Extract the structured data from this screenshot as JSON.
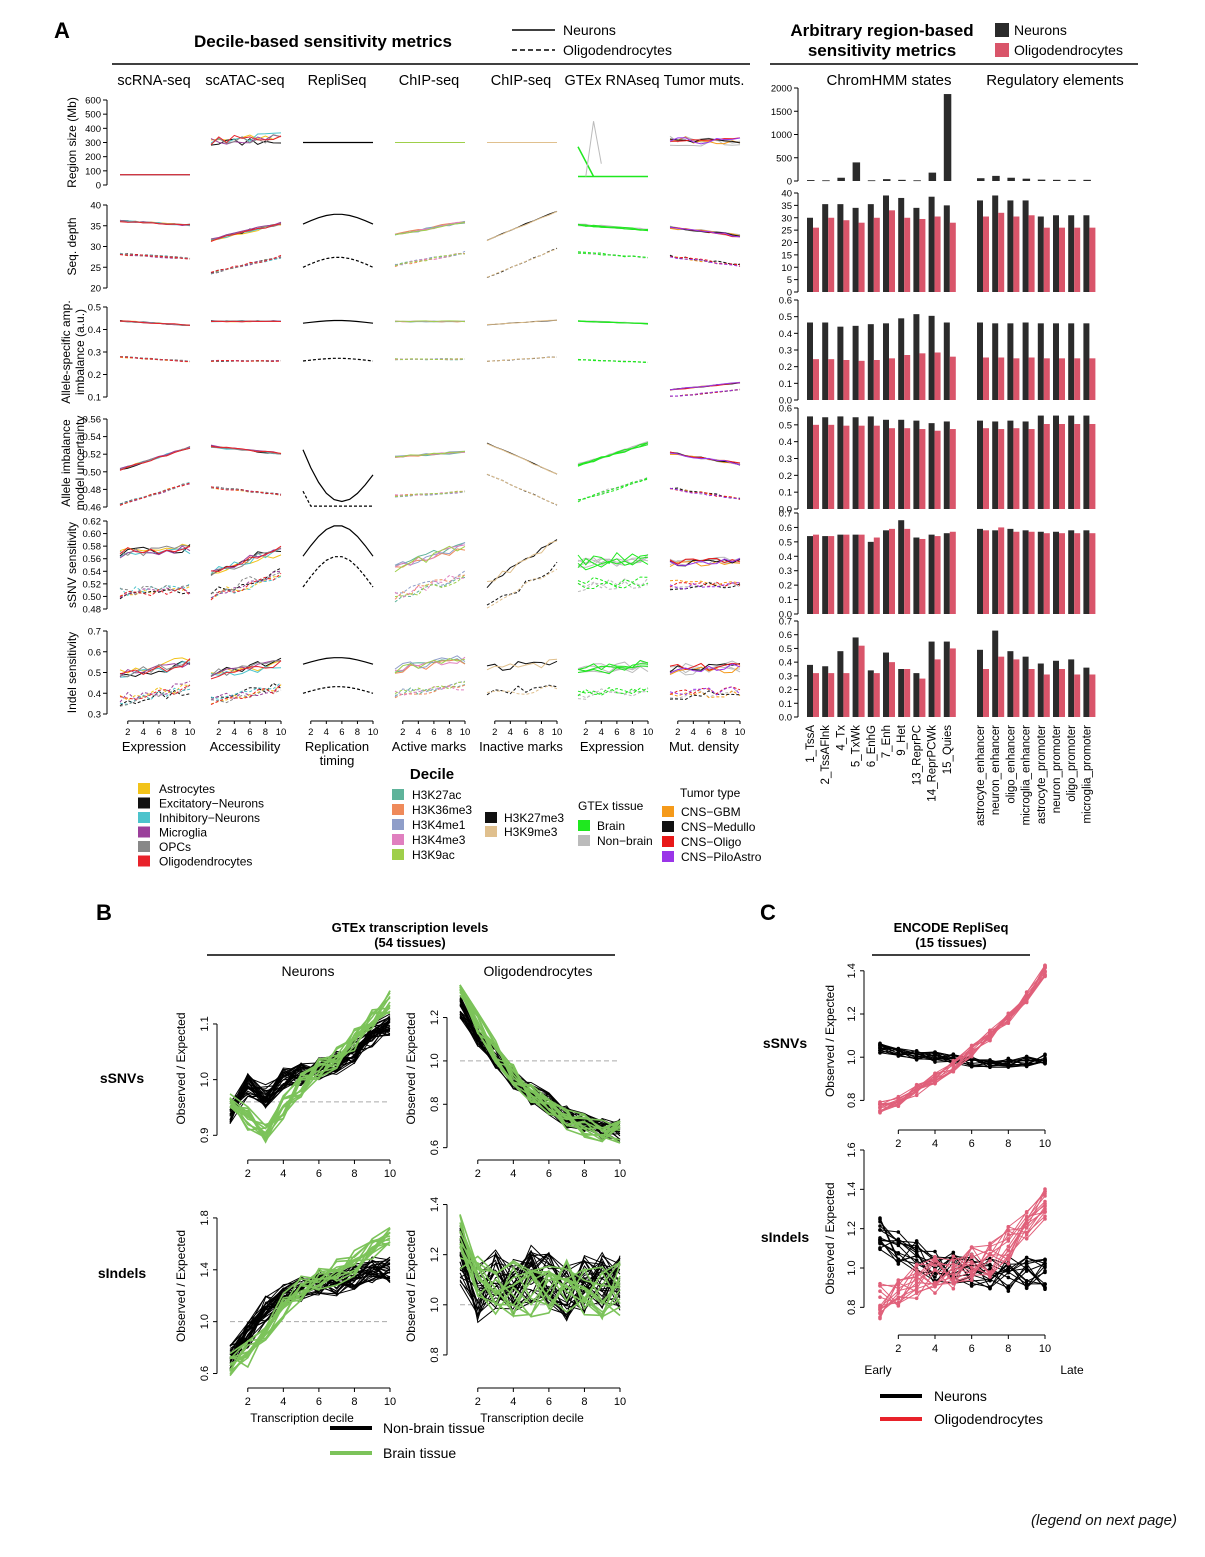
{
  "panel_labels": {
    "a": "A",
    "b": "B",
    "c": "C"
  },
  "footer_note": "(legend on next page)",
  "panel_a": {
    "decile_title": "Decile-based sensitivity metrics",
    "arbitrary_title_1": "Arbitrary region-based",
    "arbitrary_title_2": "sensitivity metrics",
    "line_legend": {
      "solid": "Neurons",
      "dashed": "Oligodendrocytes"
    },
    "bar_legend": {
      "neurons": "Neurons",
      "oligo": "Oligodendrocytes"
    },
    "column_titles": [
      "scRNA-seq",
      "scATAC-seq",
      "RepliSeq",
      "ChIP-seq",
      "ChIP-seq",
      "GTEx RNAseq",
      "Tumor muts."
    ],
    "column_xlabels": [
      [
        "Expression"
      ],
      [
        "Accessibility"
      ],
      [
        "Replication",
        "timing"
      ],
      [
        "Active marks"
      ],
      [
        "Inactive marks"
      ],
      [
        "Expression"
      ],
      [
        "Mut. density"
      ]
    ],
    "bar_group_titles": [
      "ChromHMM states",
      "Regulatory elements"
    ],
    "decile_ticks": [
      "2",
      "4",
      "6",
      "8",
      "10"
    ],
    "row_labels": [
      [
        "Region size (Mb)"
      ],
      [
        "Seq. depth"
      ],
      [
        "Allele-specific amp.",
        "imbalance (a.u.)"
      ],
      [
        "Allele imbalance",
        "model uncertainty"
      ],
      [
        "sSNV sensitivity"
      ],
      [
        "Indel sensitivity"
      ]
    ],
    "row_ticks": [
      [
        "0",
        "100",
        "200",
        "300",
        "400",
        "500",
        "600"
      ],
      [
        "20",
        "25",
        "30",
        "35",
        "40"
      ],
      [
        "0.1",
        "0.2",
        "0.3",
        "0.4",
        "0.5"
      ],
      [
        "0.46",
        "0.48",
        "0.50",
        "0.52",
        "0.54",
        "0.56"
      ],
      [
        "0.48",
        "0.50",
        "0.52",
        "0.54",
        "0.56",
        "0.58",
        "0.60",
        "0.62"
      ],
      [
        "0.3",
        "0.4",
        "0.5",
        "0.6",
        "0.7"
      ]
    ],
    "bar_categories": [
      "1_TssA",
      "2_TssAFlnk",
      "4_Tx",
      "5_TxWk",
      "6_EnhG",
      "7_Enh",
      "9_Het",
      "13_ReprPC",
      "14_ReprPCWk",
      "15_Quies",
      "astrocyte_enhancer",
      "neuron_enhancer",
      "oligo_enhancer",
      "microglia_enhancer",
      "astrocyte_promoter",
      "neuron_promoter",
      "oligo_promoter",
      "microglia_promoter"
    ],
    "bar_row_ticks": [
      [
        "0",
        "500",
        "1000",
        "1500",
        "2000"
      ],
      [
        "0",
        "5",
        "10",
        "15",
        "20",
        "25",
        "30",
        "35",
        "40"
      ],
      [
        "0.0",
        "0.1",
        "0.2",
        "0.3",
        "0.4",
        "0.5",
        "0.6"
      ],
      [
        "0.0",
        "0.1",
        "0.2",
        "0.3",
        "0.4",
        "0.5",
        "0.6"
      ],
      [
        "0.0",
        "0.1",
        "0.2",
        "0.3",
        "0.4",
        "0.5",
        "0.6",
        "0.7"
      ],
      [
        "0.0",
        "0.1",
        "0.2",
        "0.3",
        "0.4",
        "0.5",
        "0.6",
        "0.7"
      ]
    ],
    "legends": {
      "decile_title": "Decile",
      "cell_types": [
        {
          "label": "Astrocytes",
          "color": "#f2c31a"
        },
        {
          "label": "Excitatory−Neurons",
          "color": "#111111"
        },
        {
          "label": "Inhibitory−Neurons",
          "color": "#4cc3cc"
        },
        {
          "label": "Microglia",
          "color": "#9b3f9b"
        },
        {
          "label": "OPCs",
          "color": "#888888"
        },
        {
          "label": "Oligodendrocytes",
          "color": "#e8222a"
        }
      ],
      "marks_active": [
        {
          "label": "H3K27ac",
          "color": "#5fb39a"
        },
        {
          "label": "H3K36me3",
          "color": "#ef8a5a"
        },
        {
          "label": "H3K4me1",
          "color": "#8f9ec9"
        },
        {
          "label": "H3K4me3",
          "color": "#e07fbf"
        },
        {
          "label": "H3K9ac",
          "color": "#9fcf4a"
        }
      ],
      "marks_inactive": [
        {
          "label": "H3K27me3",
          "color": "#111111"
        },
        {
          "label": "H3K9me3",
          "color": "#e0c08e"
        }
      ],
      "gtex_title": "GTEx tissue",
      "gtex": [
        {
          "label": "Brain",
          "color": "#1fe81f"
        },
        {
          "label": "Non−brain",
          "color": "#bbbbbb"
        }
      ],
      "tumor_title": "Tumor type",
      "tumor": [
        {
          "label": "CNS−GBM",
          "color": "#f59a1a"
        },
        {
          "label": "CNS−Medullo",
          "color": "#111111"
        },
        {
          "label": "CNS−Oligo",
          "color": "#e81818"
        },
        {
          "label": "CNS−PiloAstro",
          "color": "#9a35e8"
        }
      ]
    }
  },
  "panel_b": {
    "title": "GTEx transcription levels",
    "subtitle": "(54 tissues)",
    "col_titles": [
      "Neurons",
      "Oligodendrocytes"
    ],
    "row_labels": [
      "sSNVs",
      "sIndels"
    ],
    "ylabel": "Observed / Expected",
    "xlabel": "Transcription decile",
    "x_ticks": [
      "2",
      "4",
      "6",
      "8",
      "10"
    ],
    "y_ticks": {
      "snv_neurons": [
        "0.9",
        "1.0",
        "1.1"
      ],
      "snv_oligo": [
        "0.6",
        "0.8",
        "1.0",
        "1.2"
      ],
      "indel_neurons": [
        "0.6",
        "1.0",
        "1.4",
        "1.8"
      ],
      "indel_oligo": [
        "0.8",
        "1.0",
        "1.2",
        "1.4"
      ]
    },
    "legend": [
      {
        "label": "Non-brain tissue",
        "color": "#000000"
      },
      {
        "label": "Brain tissue",
        "color": "#7cc35a"
      }
    ]
  },
  "panel_c": {
    "title": "ENCODE RepliSeq",
    "subtitle": "(15 tissues)",
    "row_labels": [
      "sSNVs",
      "sIndels"
    ],
    "ylabel": "Observed / Expected",
    "x_ticks": [
      "2",
      "4",
      "6",
      "8",
      "10"
    ],
    "x_end_labels": [
      "Early",
      "Late"
    ],
    "y_ticks": {
      "snv": [
        "0.8",
        "1.0",
        "1.2",
        "1.4"
      ],
      "indel": [
        "0.8",
        "1.0",
        "1.2",
        "1.4",
        "1.6"
      ]
    },
    "legend": [
      {
        "label": "Neurons",
        "color": "#000000"
      },
      {
        "label": "Oligodendrocytes",
        "color": "#e8222a"
      }
    ]
  },
  "chart_data": [
    {
      "type": "bar",
      "title": "Arbitrary region-based sensitivity metrics",
      "categories": [
        "1_TssA",
        "2_TssAFlnk",
        "4_Tx",
        "5_TxWk",
        "6_EnhG",
        "7_Enh",
        "9_Het",
        "13_ReprPC",
        "14_ReprPCWk",
        "15_Quies",
        "astrocyte_enhancer",
        "neuron_enhancer",
        "oligo_enhancer",
        "microglia_enhancer",
        "astrocyte_promoter",
        "neuron_promoter",
        "oligo_promoter",
        "microglia_promoter"
      ],
      "panels": [
        {
          "ylabel": "Region size (Mb)",
          "ylim": [
            0,
            2000
          ],
          "series": [
            {
              "name": "Neurons",
              "values": [
                20,
                15,
                70,
                400,
                15,
                40,
                25,
                15,
                180,
                1870,
                60,
                110,
                70,
                50,
                30,
                25,
                25,
                25
              ]
            },
            {
              "name": "Oligodendrocytes",
              "values": []
            }
          ]
        },
        {
          "ylabel": "Seq. depth",
          "ylim": [
            0,
            40
          ],
          "series": [
            {
              "name": "Neurons",
              "values": [
                30,
                35.5,
                35.5,
                34,
                35.5,
                39,
                38,
                34,
                38.5,
                35,
                37,
                39,
                37,
                37,
                30.5,
                31,
                31,
                31
              ]
            },
            {
              "name": "Oligodendrocytes",
              "values": [
                26,
                30,
                29,
                28,
                30,
                33,
                30,
                29.5,
                30.5,
                28,
                30.5,
                32,
                30.5,
                31,
                26,
                26,
                26,
                26
              ]
            }
          ]
        },
        {
          "ylabel": "Allele-specific amp. imbalance (a.u.)",
          "ylim": [
            0,
            0.6
          ],
          "series": [
            {
              "name": "Neurons",
              "values": [
                0.465,
                0.465,
                0.44,
                0.445,
                0.455,
                0.46,
                0.49,
                0.515,
                0.505,
                0.465,
                0.465,
                0.46,
                0.46,
                0.465,
                0.46,
                0.46,
                0.46,
                0.46
              ]
            },
            {
              "name": "Oligodendrocytes",
              "values": [
                0.245,
                0.245,
                0.24,
                0.235,
                0.24,
                0.25,
                0.27,
                0.28,
                0.285,
                0.26,
                0.255,
                0.255,
                0.25,
                0.255,
                0.25,
                0.25,
                0.25,
                0.25
              ]
            }
          ]
        },
        {
          "ylabel": "Allele imbalance model uncertainty",
          "ylim": [
            0,
            0.6
          ],
          "series": [
            {
              "name": "Neurons",
              "values": [
                0.55,
                0.545,
                0.55,
                0.545,
                0.55,
                0.53,
                0.53,
                0.525,
                0.51,
                0.52,
                0.525,
                0.52,
                0.525,
                0.52,
                0.555,
                0.555,
                0.555,
                0.555
              ]
            },
            {
              "name": "Oligodendrocytes",
              "values": [
                0.5,
                0.5,
                0.495,
                0.495,
                0.495,
                0.48,
                0.48,
                0.475,
                0.465,
                0.475,
                0.48,
                0.475,
                0.48,
                0.475,
                0.505,
                0.505,
                0.505,
                0.505
              ]
            }
          ]
        },
        {
          "ylabel": "sSNV sensitivity",
          "ylim": [
            0,
            0.7
          ],
          "series": [
            {
              "name": "Neurons",
              "values": [
                0.54,
                0.54,
                0.55,
                0.55,
                0.5,
                0.58,
                0.65,
                0.53,
                0.55,
                0.56,
                0.59,
                0.58,
                0.59,
                0.58,
                0.57,
                0.57,
                0.58,
                0.58
              ]
            },
            {
              "name": "Oligodendrocytes",
              "values": [
                0.55,
                0.54,
                0.55,
                0.55,
                0.53,
                0.59,
                0.59,
                0.52,
                0.54,
                0.57,
                0.58,
                0.6,
                0.57,
                0.57,
                0.56,
                0.56,
                0.56,
                0.56
              ]
            }
          ]
        },
        {
          "ylabel": "Indel sensitivity",
          "ylim": [
            0,
            0.7
          ],
          "series": [
            {
              "name": "Neurons",
              "values": [
                0.38,
                0.37,
                0.48,
                0.58,
                0.34,
                0.47,
                0.35,
                0.32,
                0.55,
                0.55,
                0.49,
                0.63,
                0.48,
                0.44,
                0.39,
                0.41,
                0.42,
                0.36
              ]
            },
            {
              "name": "Oligodendrocytes",
              "values": [
                0.32,
                0.32,
                0.32,
                0.52,
                0.32,
                0.4,
                0.35,
                0.28,
                0.42,
                0.5,
                0.35,
                0.44,
                0.42,
                0.35,
                0.31,
                0.35,
                0.31,
                0.31
              ]
            }
          ]
        }
      ]
    },
    {
      "type": "line",
      "title": "GTEx transcription levels (54 tissues)",
      "xlabel": "Transcription decile",
      "ylabel": "Observed / Expected",
      "x": [
        1,
        2,
        3,
        4,
        5,
        6,
        7,
        8,
        9,
        10
      ],
      "panels": [
        {
          "row": "sSNVs",
          "col": "Neurons",
          "ylim": [
            0.87,
            1.17
          ],
          "reference": 0.96,
          "series": [
            {
              "name": "Non-brain tissue",
              "values": [
                0.94,
                0.99,
                0.97,
                1.0,
                1.01,
                1.02,
                1.03,
                1.05,
                1.08,
                1.1
              ]
            },
            {
              "name": "Brain tissue",
              "values": [
                0.96,
                0.93,
                0.9,
                0.95,
                0.99,
                1.02,
                1.04,
                1.07,
                1.11,
                1.14
              ]
            }
          ]
        },
        {
          "row": "sSNVs",
          "col": "Oligodendrocytes",
          "ylim": [
            0.58,
            1.35
          ],
          "reference": 1.0,
          "series": [
            {
              "name": "Non-brain tissue",
              "values": [
                1.25,
                1.12,
                1.02,
                0.92,
                0.85,
                0.8,
                0.74,
                0.71,
                0.69,
                0.68
              ]
            },
            {
              "name": "Brain tissue",
              "values": [
                1.33,
                1.18,
                1.04,
                0.93,
                0.85,
                0.79,
                0.73,
                0.7,
                0.68,
                0.67
              ]
            }
          ]
        },
        {
          "row": "sIndels",
          "col": "Neurons",
          "ylim": [
            0.55,
            2.0
          ],
          "reference": 1.0,
          "series": [
            {
              "name": "Non-brain tissue",
              "values": [
                0.72,
                0.9,
                1.1,
                1.2,
                1.25,
                1.3,
                1.3,
                1.35,
                1.4,
                1.4
              ]
            },
            {
              "name": "Brain tissue",
              "values": [
                0.67,
                0.75,
                0.95,
                1.12,
                1.25,
                1.32,
                1.38,
                1.45,
                1.55,
                1.65
              ]
            }
          ]
        },
        {
          "row": "sIndels",
          "col": "Oligodendrocytes",
          "ylim": [
            0.7,
            1.45
          ],
          "reference": 1.0,
          "series": [
            {
              "name": "Non-brain tissue",
              "values": [
                1.2,
                1.05,
                1.1,
                1.08,
                1.12,
                1.1,
                1.05,
                1.08,
                1.1,
                1.08
              ]
            },
            {
              "name": "Brain tissue",
              "values": [
                1.25,
                1.08,
                1.05,
                1.06,
                1.04,
                1.05,
                1.06,
                1.05,
                1.04,
                1.06
              ]
            }
          ]
        }
      ]
    },
    {
      "type": "line",
      "title": "ENCODE RepliSeq (15 tissues)",
      "ylabel": "Observed / Expected",
      "x": [
        1,
        2,
        3,
        4,
        5,
        6,
        7,
        8,
        9,
        10
      ],
      "x_labels": [
        "Early",
        "Late"
      ],
      "panels": [
        {
          "row": "sSNVs",
          "ylim": [
            0.7,
            1.45
          ],
          "series": [
            {
              "name": "Neurons",
              "values": [
                1.04,
                1.03,
                1.01,
                1.0,
                0.99,
                0.98,
                0.97,
                0.97,
                0.98,
                0.99
              ]
            },
            {
              "name": "Oligodendrocytes",
              "values": [
                0.77,
                0.8,
                0.85,
                0.9,
                0.96,
                1.03,
                1.1,
                1.18,
                1.28,
                1.4
              ]
            }
          ]
        },
        {
          "row": "sIndels",
          "ylim": [
            0.7,
            1.6
          ],
          "series": [
            {
              "name": "Neurons",
              "values": [
                1.18,
                1.1,
                1.05,
                1.0,
                1.0,
                0.98,
                0.97,
                0.97,
                0.98,
                0.97
              ]
            },
            {
              "name": "Oligodendrocytes",
              "values": [
                0.83,
                0.88,
                0.92,
                0.96,
                0.98,
                1.02,
                1.05,
                1.12,
                1.2,
                1.32
              ]
            }
          ]
        }
      ]
    }
  ]
}
